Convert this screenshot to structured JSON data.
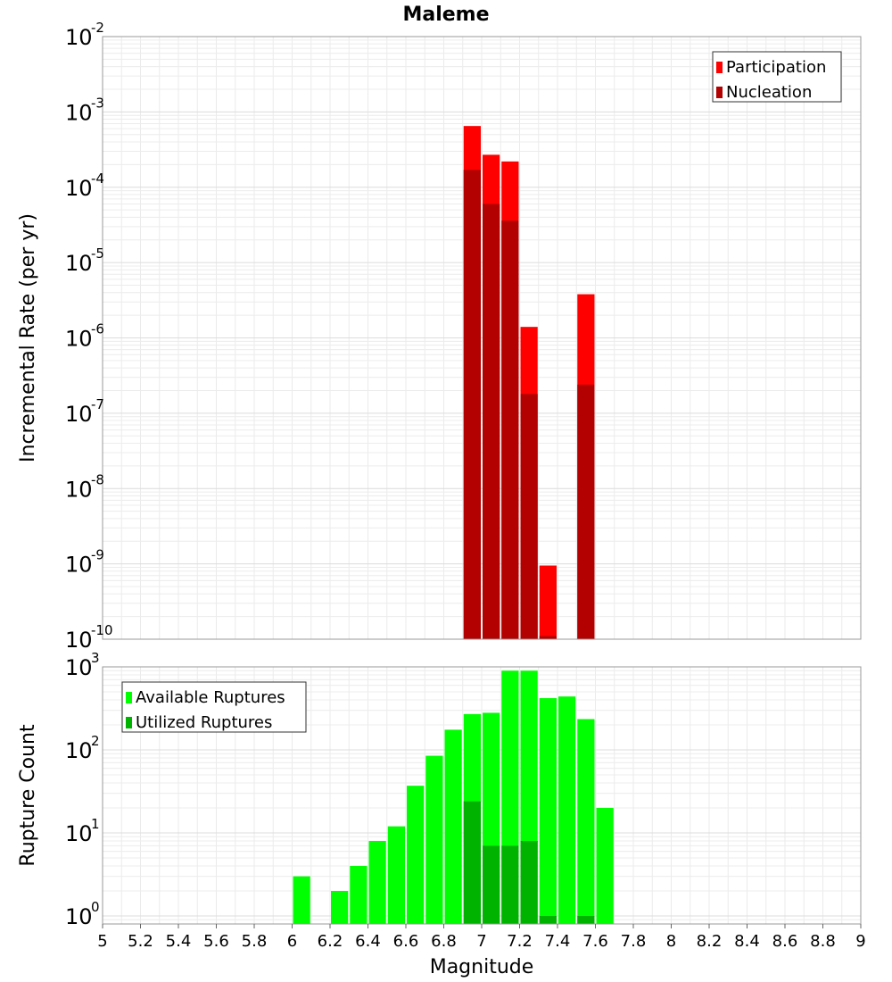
{
  "chart_data": [
    {
      "type": "bar",
      "title": "Maleme",
      "ylabel": "Incremental Rate (per yr)",
      "xlabel": "",
      "y_scale": "log",
      "ylim": [
        1e-10,
        0.01
      ],
      "xlim": [
        5,
        9
      ],
      "y_ticks": [
        {
          "base": "10",
          "exp": "-10"
        },
        {
          "base": "10",
          "exp": "-9"
        },
        {
          "base": "10",
          "exp": "-8"
        },
        {
          "base": "10",
          "exp": "-7"
        },
        {
          "base": "10",
          "exp": "-6"
        },
        {
          "base": "10",
          "exp": "-5"
        },
        {
          "base": "10",
          "exp": "-4"
        },
        {
          "base": "10",
          "exp": "-3"
        },
        {
          "base": "10",
          "exp": "-2"
        }
      ],
      "grid": true,
      "legend_position": "top-right",
      "series": [
        {
          "name": "Participation",
          "color": "#ff0000",
          "points": [
            {
              "x": 6.95,
              "y": 0.00065
            },
            {
              "x": 7.05,
              "y": 0.00027
            },
            {
              "x": 7.15,
              "y": 0.00022
            },
            {
              "x": 7.25,
              "y": 1.4e-06
            },
            {
              "x": 7.35,
              "y": 9.5e-10
            },
            {
              "x": 7.55,
              "y": 3.8e-06
            }
          ]
        },
        {
          "name": "Nucleation",
          "color": "#b30000",
          "points": [
            {
              "x": 6.95,
              "y": 0.00017
            },
            {
              "x": 7.05,
              "y": 6e-05
            },
            {
              "x": 7.15,
              "y": 3.6e-05
            },
            {
              "x": 7.25,
              "y": 1.8e-07
            },
            {
              "x": 7.35,
              "y": 1.1e-10
            },
            {
              "x": 7.55,
              "y": 2.4e-07
            }
          ]
        }
      ]
    },
    {
      "type": "bar",
      "title": "",
      "ylabel": "Rupture Count",
      "xlabel": "Magnitude",
      "y_scale": "log",
      "ylim": [
        0.8,
        1000
      ],
      "xlim": [
        5,
        9
      ],
      "y_ticks": [
        {
          "base": "10",
          "exp": "0",
          "value": 1
        },
        {
          "base": "10",
          "exp": "1",
          "value": 10
        },
        {
          "base": "10",
          "exp": "2",
          "value": 100
        },
        {
          "base": "10",
          "exp": "3",
          "value": 1000
        }
      ],
      "x_tick_labels": [
        "5",
        "5.2",
        "5.4",
        "5.6",
        "5.8",
        "6",
        "6.2",
        "6.4",
        "6.6",
        "6.8",
        "7",
        "7.2",
        "7.4",
        "7.6",
        "7.8",
        "8",
        "8.2",
        "8.4",
        "8.6",
        "8.8",
        "9"
      ],
      "grid": true,
      "legend_position": "top-left",
      "series": [
        {
          "name": "Available Ruptures",
          "color": "#00ff00",
          "points": [
            {
              "x": 6.05,
              "y": 3
            },
            {
              "x": 6.25,
              "y": 2
            },
            {
              "x": 6.35,
              "y": 4
            },
            {
              "x": 6.45,
              "y": 8
            },
            {
              "x": 6.55,
              "y": 12
            },
            {
              "x": 6.65,
              "y": 37
            },
            {
              "x": 6.75,
              "y": 85
            },
            {
              "x": 6.85,
              "y": 175
            },
            {
              "x": 6.95,
              "y": 270
            },
            {
              "x": 7.05,
              "y": 280
            },
            {
              "x": 7.15,
              "y": 900
            },
            {
              "x": 7.25,
              "y": 900
            },
            {
              "x": 7.35,
              "y": 420
            },
            {
              "x": 7.45,
              "y": 440
            },
            {
              "x": 7.55,
              "y": 235
            },
            {
              "x": 7.65,
              "y": 20
            }
          ]
        },
        {
          "name": "Utilized Ruptures",
          "color": "#00b300",
          "points": [
            {
              "x": 6.95,
              "y": 24
            },
            {
              "x": 7.05,
              "y": 7
            },
            {
              "x": 7.15,
              "y": 7
            },
            {
              "x": 7.25,
              "y": 8
            },
            {
              "x": 7.35,
              "y": 1
            },
            {
              "x": 7.55,
              "y": 1
            }
          ]
        }
      ]
    }
  ]
}
